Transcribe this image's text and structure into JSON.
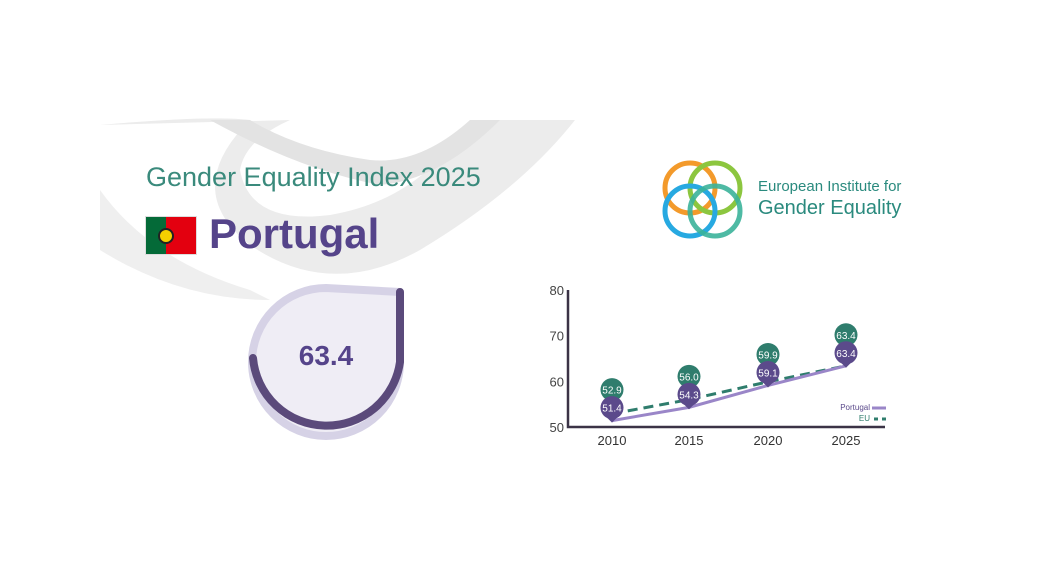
{
  "header": {
    "title": "Gender Equality Index 2025",
    "country": "Portugal"
  },
  "logo": {
    "line1": "European Institute for",
    "line2": "Gender Equality"
  },
  "score": {
    "value": "63.4",
    "fraction": 0.634
  },
  "colors": {
    "portugal": "#5b4a8b",
    "eu": "#2f7d6d",
    "title": "#3a8a7c",
    "axis": "#3b3346"
  },
  "chart_data": {
    "type": "line",
    "x": [
      "2010",
      "2015",
      "2020",
      "2025"
    ],
    "ylim": [
      50,
      80
    ],
    "yticks": [
      "50",
      "60",
      "70",
      "80"
    ],
    "series": [
      {
        "name": "Portugal",
        "values": [
          51.4,
          54.3,
          59.1,
          63.4
        ],
        "labels": [
          "51.4",
          "54.3",
          "59.1",
          "63.4"
        ]
      },
      {
        "name": "EU",
        "values": [
          52.9,
          56.0,
          59.9,
          63.4
        ],
        "labels": [
          "52.9",
          "56.0",
          "59.9",
          "63.4"
        ]
      }
    ],
    "legend": "bottom-right"
  }
}
